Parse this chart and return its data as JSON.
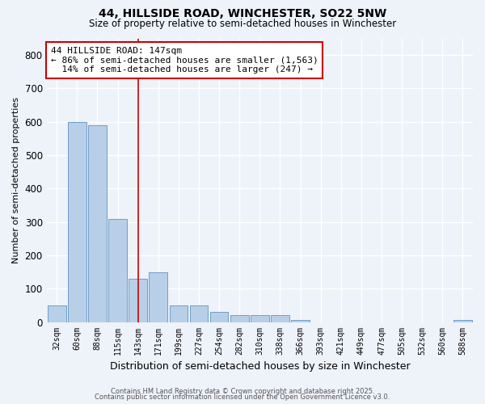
{
  "title1": "44, HILLSIDE ROAD, WINCHESTER, SO22 5NW",
  "title2": "Size of property relative to semi-detached houses in Winchester",
  "xlabel": "Distribution of semi-detached houses by size in Winchester",
  "ylabel": "Number of semi-detached properties",
  "categories": [
    "32sqm",
    "60sqm",
    "88sqm",
    "115sqm",
    "143sqm",
    "171sqm",
    "199sqm",
    "227sqm",
    "254sqm",
    "282sqm",
    "310sqm",
    "338sqm",
    "366sqm",
    "393sqm",
    "421sqm",
    "449sqm",
    "477sqm",
    "505sqm",
    "532sqm",
    "560sqm",
    "588sqm"
  ],
  "values": [
    50,
    600,
    590,
    310,
    130,
    150,
    50,
    50,
    30,
    20,
    20,
    20,
    5,
    0,
    0,
    0,
    0,
    0,
    0,
    0,
    5
  ],
  "bar_color": "#b8cfe8",
  "bar_edge_color": "#6e9dc8",
  "highlight_index": 4,
  "highlight_line_color": "#cc0000",
  "annotation_text": "44 HILLSIDE ROAD: 147sqm\n← 86% of semi-detached houses are smaller (1,563)\n  14% of semi-detached houses are larger (247) →",
  "annotation_box_color": "#ffffff",
  "annotation_border_color": "#cc0000",
  "ylim": [
    0,
    850
  ],
  "yticks": [
    0,
    100,
    200,
    300,
    400,
    500,
    600,
    700,
    800
  ],
  "footer1": "Contains HM Land Registry data © Crown copyright and database right 2025.",
  "footer2": "Contains public sector information licensed under the Open Government Licence v3.0.",
  "bg_color": "#eef2f9",
  "grid_color": "#ffffff"
}
